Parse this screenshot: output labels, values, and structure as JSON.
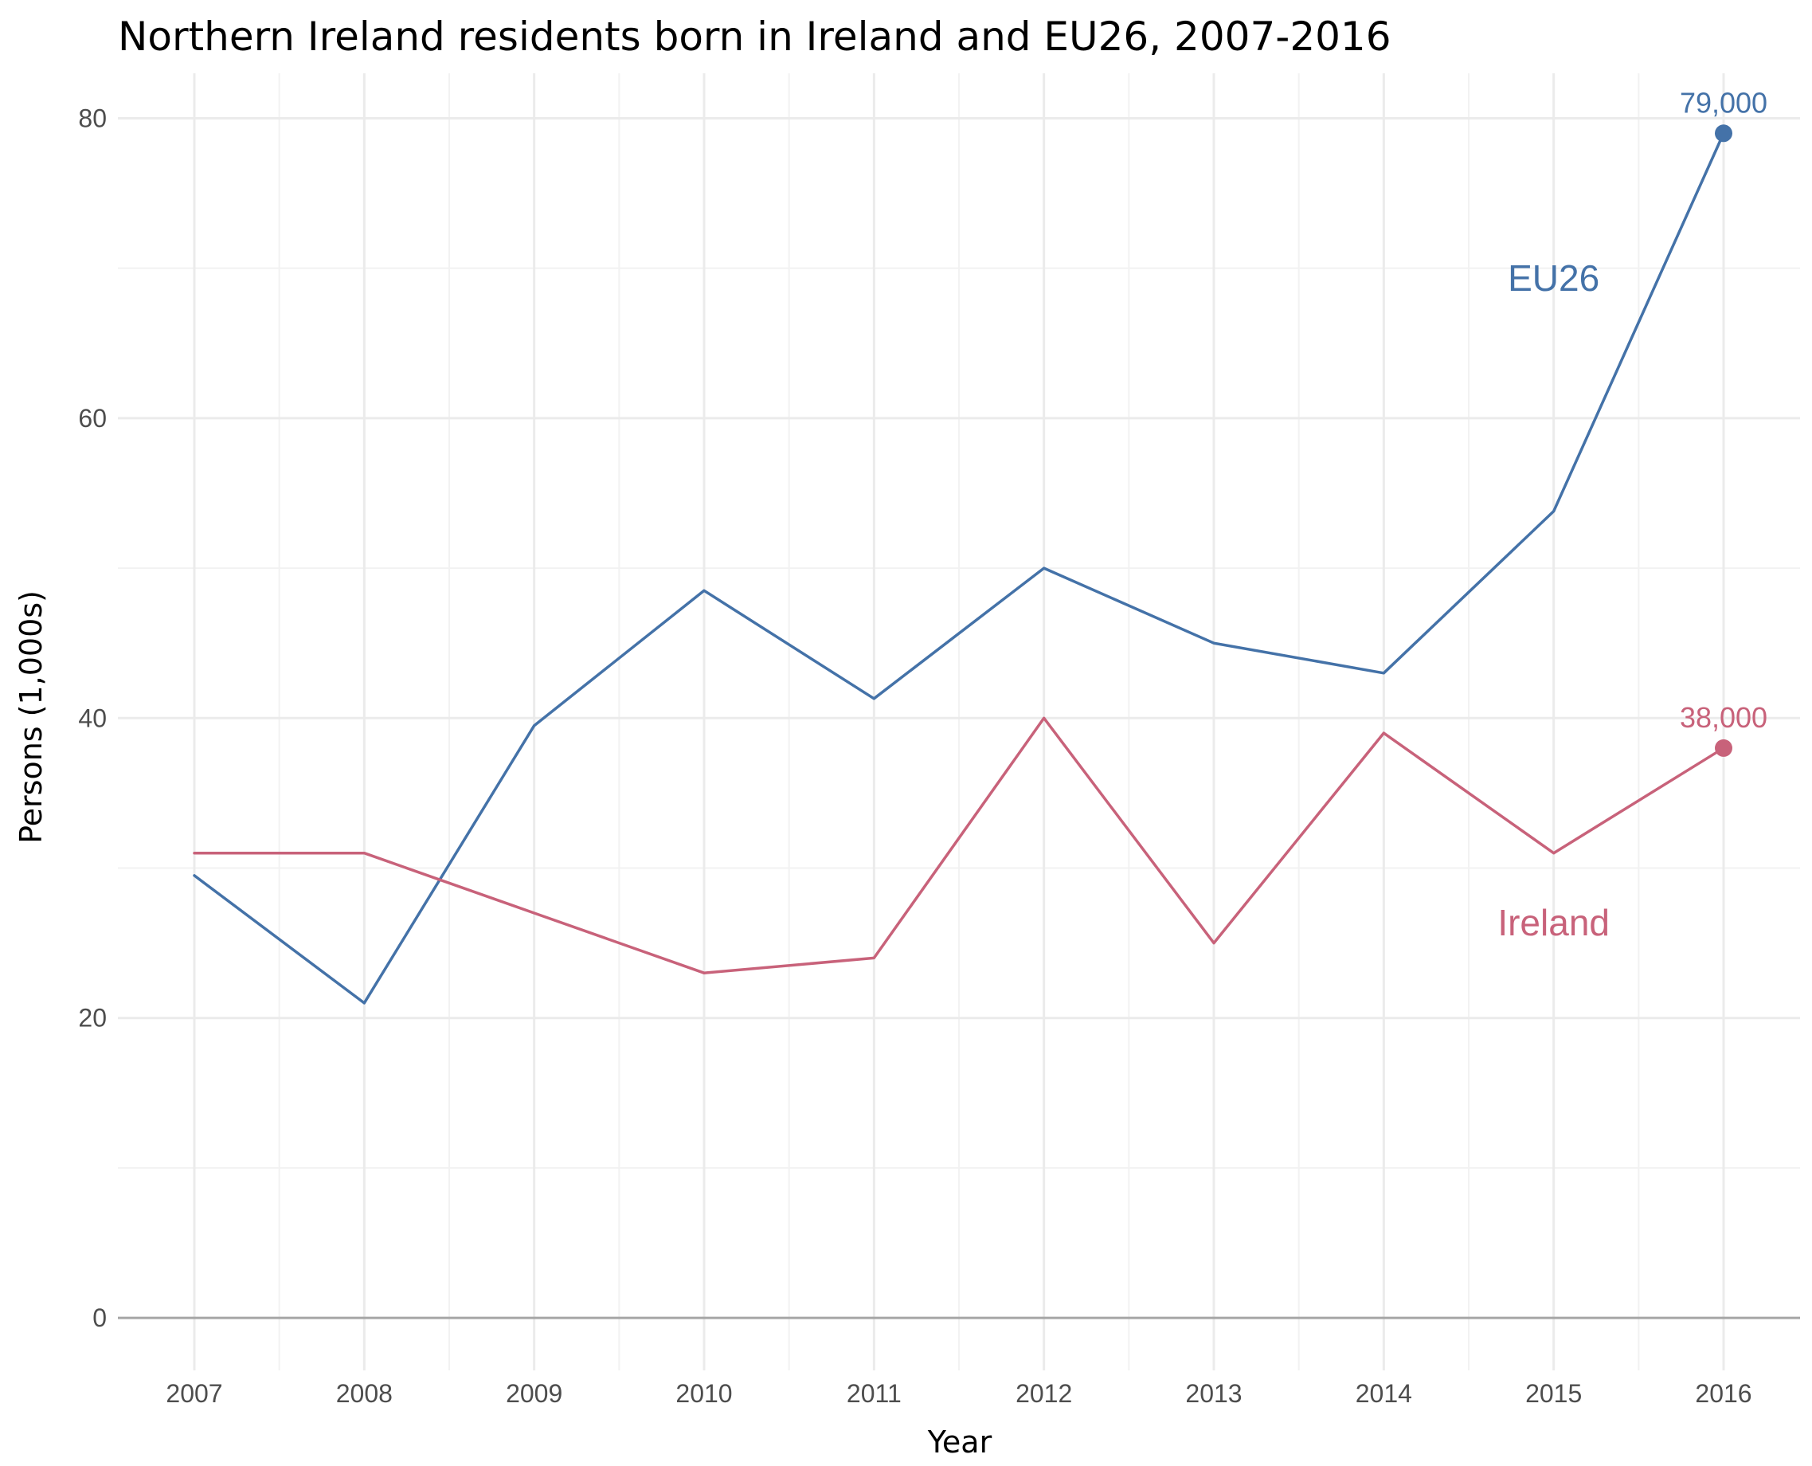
{
  "chart_data": {
    "type": "line",
    "title": "Northern Ireland residents born in Ireland and EU26, 2007-2016",
    "xlabel": "Year",
    "ylabel": "Persons (1,000s)",
    "x": [
      2007,
      2008,
      2009,
      2010,
      2011,
      2012,
      2013,
      2014,
      2015,
      2016
    ],
    "x_tick_labels": [
      "2007",
      "2008",
      "2009",
      "2010",
      "2011",
      "2012",
      "2013",
      "2014",
      "2015",
      "2016"
    ],
    "y_ticks": [
      0,
      20,
      40,
      60,
      80
    ],
    "y_tick_labels": [
      "0",
      "20",
      "40",
      "60",
      "80"
    ],
    "ylim": [
      -3.5,
      83
    ],
    "xlim": [
      2006.55,
      2016.45
    ],
    "grid": true,
    "legend": "none",
    "series": [
      {
        "name": "EU26",
        "color": "#4472a8",
        "values": [
          29.5,
          21,
          39.5,
          48.5,
          41.3,
          50,
          45,
          43,
          53.8,
          79
        ],
        "end_label": "79,000"
      },
      {
        "name": "Ireland",
        "color": "#c8627a",
        "values": [
          31,
          31,
          27,
          23,
          24,
          40,
          25,
          39,
          31,
          38
        ],
        "end_label": "38,000"
      }
    ]
  }
}
